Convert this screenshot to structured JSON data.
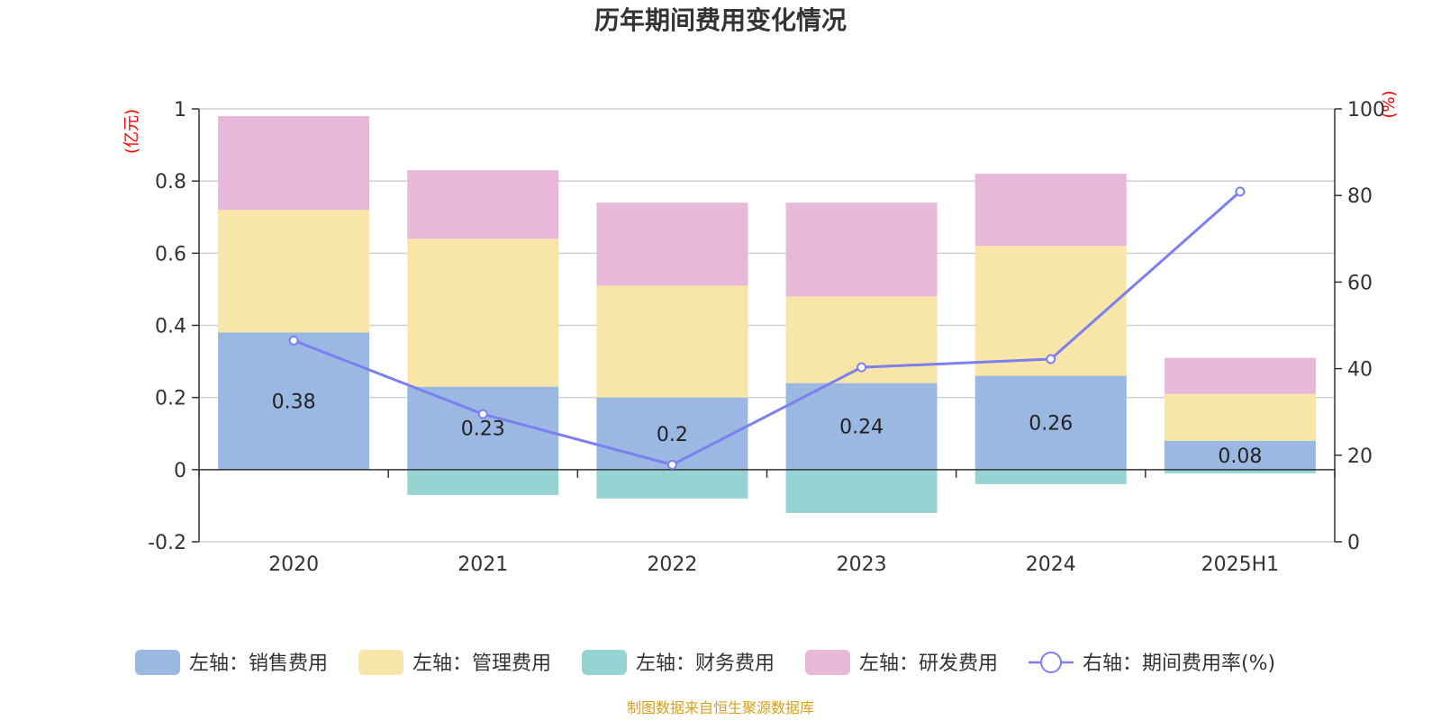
{
  "chart_data": {
    "type": "bar",
    "title": "历年期间费用变化情况",
    "categories": [
      "2020",
      "2021",
      "2022",
      "2023",
      "2024",
      "2025H1"
    ],
    "left_axis": {
      "unit": "(亿元)",
      "ylim": [
        -0.2,
        1
      ],
      "ticks": [
        "-0.2",
        "0",
        "0.2",
        "0.4",
        "0.6",
        "0.8",
        "1"
      ]
    },
    "right_axis": {
      "unit": "(%)",
      "ylim": [
        0,
        100
      ],
      "ticks": [
        "0",
        "20",
        "40",
        "60",
        "80",
        "100"
      ]
    },
    "series": [
      {
        "name": "左轴：销售费用",
        "kind": "bar",
        "axis": "left",
        "color": "#9bb8e2",
        "values": [
          0.38,
          0.23,
          0.2,
          0.24,
          0.26,
          0.08
        ],
        "labels": [
          "0.38",
          "0.23",
          "0.2",
          "0.24",
          "0.26",
          "0.08"
        ]
      },
      {
        "name": "左轴：管理费用",
        "kind": "bar",
        "axis": "left",
        "color": "#f7e6a8",
        "values": [
          0.34,
          0.41,
          0.31,
          0.24,
          0.36,
          0.13
        ]
      },
      {
        "name": "左轴：财务费用",
        "kind": "bar",
        "axis": "left",
        "color": "#96d4d4",
        "values": [
          0,
          -0.07,
          -0.08,
          -0.12,
          -0.04,
          -0.01
        ]
      },
      {
        "name": "左轴：研发费用",
        "kind": "bar",
        "axis": "left",
        "color": "#e8b8d8",
        "values": [
          0.26,
          0.19,
          0.23,
          0.26,
          0.2,
          0.1
        ]
      },
      {
        "name": "右轴：期间费用率(%)",
        "kind": "line",
        "axis": "right",
        "color": "#7b7ff0",
        "values": [
          46.5,
          29.5,
          17.8,
          40.3,
          42.2,
          80.9
        ]
      }
    ],
    "grid": true,
    "legend_position": "bottom",
    "source": "制图数据来自恒生聚源数据库"
  }
}
